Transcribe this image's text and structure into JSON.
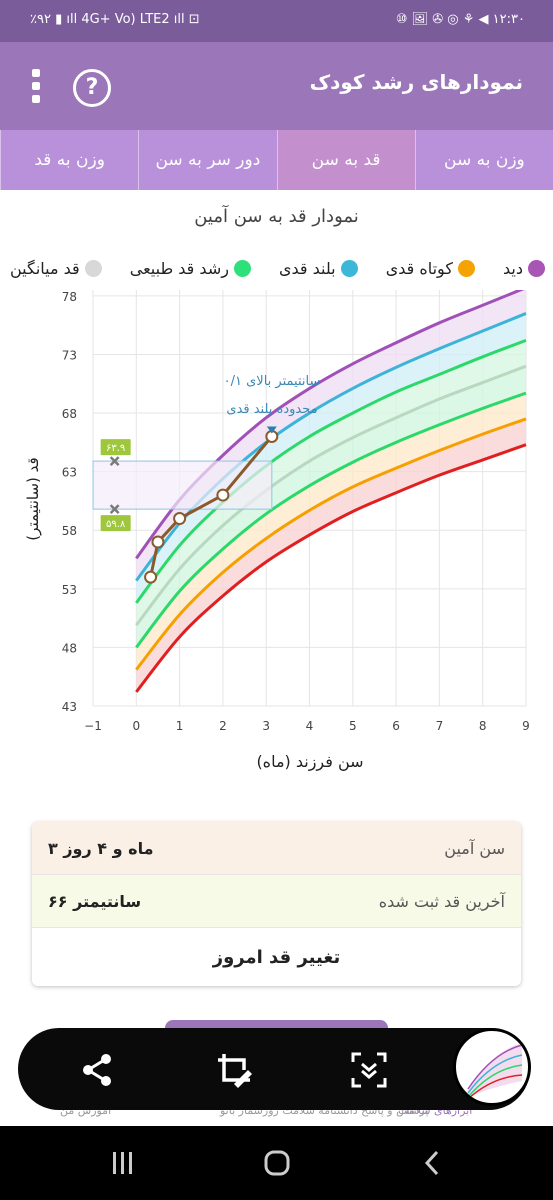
{
  "status_bar": {
    "left": "٪۹۲ ▮ ıll 4G+ Vo) LTE2 ıll ⊡",
    "right": "⑩ 🖼 ✇ ◎ ⚘ ◀ ۱۲:۳۰"
  },
  "app_bar": {
    "title": "نمودارهای رشد کودک",
    "help_icon": "?"
  },
  "tabs": [
    "وزن به سن",
    "قد به سن",
    "دور سر به سن",
    "وزن به قد"
  ],
  "active_tab_index": 1,
  "chart_data": {
    "type": "area",
    "title": "نمودار قد به سن آمین",
    "xlabel": "سن فرزند (ماه)",
    "ylabel": "قد (سانتیمتر)",
    "x_ticks": [
      "−1",
      "0",
      "1",
      "2",
      "3",
      "4",
      "5",
      "6",
      "7",
      "8",
      "9"
    ],
    "y_ticks": [
      "43",
      "48",
      "53",
      "58",
      "63",
      "68",
      "73",
      "78"
    ],
    "xlim": [
      -1,
      9
    ],
    "ylim": [
      43,
      78.5
    ],
    "grid": true,
    "legend_position": "top",
    "legend": [
      {
        "label": "دید",
        "color": "#a855b5"
      },
      {
        "label": "کوتاه قدی",
        "color": "#f5a300"
      },
      {
        "label": "بلند قدی",
        "color": "#3db7d8"
      },
      {
        "label": "رشد قد طبیعی",
        "color": "#2ee07a"
      },
      {
        "label": "قد میانگین",
        "color": "#d8d8d8"
      }
    ],
    "x": [
      0,
      1,
      2,
      3,
      4,
      5,
      6,
      7,
      8,
      9
    ],
    "curves": [
      {
        "color": "#e02020",
        "values": [
          44.2,
          48.9,
          52.4,
          55.3,
          57.6,
          59.6,
          61.2,
          62.7,
          64.0,
          65.3
        ]
      },
      {
        "color": "#f5a000",
        "values": [
          46.1,
          50.8,
          54.4,
          57.3,
          59.7,
          61.7,
          63.3,
          64.8,
          66.2,
          67.5
        ]
      },
      {
        "color": "#2bd86a",
        "values": [
          48.0,
          52.8,
          56.4,
          59.4,
          61.8,
          63.8,
          65.5,
          67.0,
          68.4,
          69.7
        ]
      },
      {
        "color": "#b8d8c0",
        "values": [
          49.9,
          54.7,
          58.4,
          61.4,
          63.9,
          65.9,
          67.6,
          69.2,
          70.6,
          72.0
        ]
      },
      {
        "color": "#2bd86a",
        "values": [
          51.8,
          56.7,
          60.4,
          63.5,
          66.0,
          68.0,
          69.8,
          71.3,
          72.8,
          74.2
        ]
      },
      {
        "color": "#3cb3d8",
        "values": [
          53.7,
          58.6,
          62.4,
          65.5,
          68.0,
          70.1,
          71.9,
          73.5,
          75.0,
          76.5
        ]
      },
      {
        "color": "#a050b8",
        "values": [
          55.6,
          60.6,
          64.4,
          67.6,
          70.1,
          72.2,
          74.0,
          75.7,
          77.2,
          78.7
        ]
      }
    ],
    "bands": [
      {
        "from": 0,
        "to": 1,
        "color": "#f9d0d0"
      },
      {
        "from": 1,
        "to": 2,
        "color": "#fde8c8"
      },
      {
        "from": 2,
        "to": 3,
        "color": "#cdf5dc"
      },
      {
        "from": 3,
        "to": 4,
        "color": "#d6f5e0"
      },
      {
        "from": 4,
        "to": 5,
        "color": "#cfeff5"
      },
      {
        "from": 5,
        "to": 6,
        "color": "#eedcf3"
      }
    ],
    "child_points": {
      "x": [
        0.33,
        0.5,
        1.0,
        2.0,
        3.13
      ],
      "y": [
        54.0,
        57.0,
        59.0,
        61.0,
        66.0
      ]
    },
    "range_box": {
      "x0": -1,
      "x1": 3.13,
      "y0": 59.8,
      "y1": 63.9
    },
    "range_markers": [
      {
        "x": -0.5,
        "y": 63.9,
        "label": "۶۳.۹"
      },
      {
        "x": -0.5,
        "y": 59.8,
        "label": "۵۹.۸"
      }
    ],
    "annotation": [
      "۰/۱ سانتیمتر بالای",
      "محدوده بلند قدی"
    ]
  },
  "summary": {
    "age_label": "سن آمین",
    "age_value": "۳ ماه و ۴ روز",
    "height_label": "آخرین قد ثبت شده",
    "height_value": "۶۶ سانتیمتر",
    "action_label": "تغییر قد امروز"
  },
  "bottom_strip": [
    "ابزارهای سلامت",
    "پرسش و پاسخ  دانشنامه سلامت  روزشمار بانو",
    "آموزش من"
  ]
}
